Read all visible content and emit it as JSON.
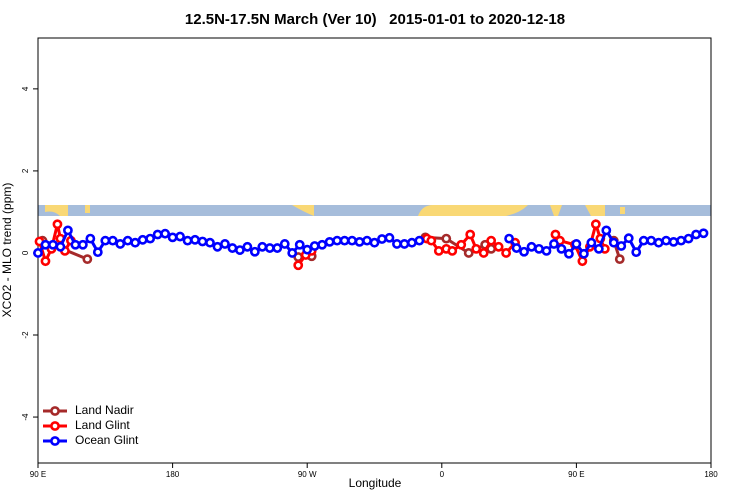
{
  "chart_data": {
    "type": "line",
    "title": "12.5N-17.5N March (Ver 10)   2015-01-01 to 2020-12-18",
    "x_label": "Longitude",
    "y_label": "XCO2 - MLO trend (ppm)",
    "xlim": [
      90,
      540
    ],
    "ylim": [
      -5.12,
      5.24
    ],
    "xticks": [
      {
        "value": 90,
        "label": "90 E"
      },
      180,
      {
        "value": 270,
        "label": "90 W"
      },
      {
        "value": 360,
        "label": "0"
      },
      {
        "value": 450,
        "label": "90 E"
      },
      {
        "value": 540,
        "label": "180"
      }
    ],
    "yticks": [
      -4,
      -2,
      0,
      2,
      4
    ],
    "legend": "bottomleft",
    "series": [
      {
        "name": "Land Nadir",
        "color": "#a52a2a",
        "x": [
          93,
          123,
          200,
          264,
          273,
          320,
          349,
          363,
          378,
          389,
          393,
          420,
          475,
          479
        ],
        "values": [
          0.3,
          -0.15,
          null,
          -0.1,
          -0.08,
          null,
          0.38,
          0.35,
          0,
          0.2,
          0.1,
          null,
          0.3,
          -0.15
        ]
      },
      {
        "name": "Land Glint",
        "color": "#ff0000",
        "x": [
          91,
          95,
          99,
          103,
          105,
          108,
          112,
          180,
          264,
          269,
          273,
          320,
          350,
          353,
          358,
          363,
          367,
          373,
          379,
          383,
          388,
          393,
          398,
          403,
          409,
          420,
          436,
          439,
          449,
          454,
          459,
          463,
          466,
          469
        ],
        "values": [
          0.28,
          -0.2,
          0.1,
          0.7,
          0.35,
          0.05,
          0.3,
          null,
          -0.3,
          -0.05,
          0.05,
          null,
          0.35,
          0.3,
          0.05,
          0.1,
          0.05,
          0.2,
          0.45,
          0.1,
          0,
          0.3,
          0.15,
          0,
          0.25,
          null,
          0.45,
          0.3,
          0.2,
          -0.2,
          0.15,
          0.7,
          0.35,
          0.1
        ]
      },
      {
        "name": "Ocean Glint",
        "color": "#0000ff",
        "x": [
          90,
          95,
          100,
          105,
          110,
          115,
          120,
          125,
          130,
          135,
          140,
          145,
          150,
          155,
          160,
          165,
          170,
          175,
          180,
          185,
          190,
          195,
          200,
          205,
          210,
          215,
          220,
          225,
          230,
          235,
          240,
          245,
          250,
          255,
          260,
          265,
          270,
          275,
          280,
          285,
          290,
          295,
          300,
          305,
          310,
          315,
          320,
          325,
          330,
          335,
          340,
          345,
          375,
          405,
          410,
          415,
          420,
          425,
          430,
          435,
          440,
          445,
          450,
          455,
          460,
          465,
          470,
          475,
          480,
          485,
          490,
          495,
          500,
          505,
          510,
          515,
          520,
          525,
          530,
          535
        ],
        "values": [
          0,
          0.2,
          0.2,
          0.15,
          0.55,
          0.2,
          0.2,
          0.35,
          0.02,
          0.3,
          0.3,
          0.22,
          0.3,
          0.25,
          0.32,
          0.35,
          0.45,
          0.47,
          0.38,
          0.4,
          0.3,
          0.32,
          0.28,
          0.25,
          0.15,
          0.22,
          0.12,
          0.07,
          0.15,
          0.03,
          0.15,
          0.12,
          0.12,
          0.22,
          0,
          0.2,
          0.08,
          0.17,
          0.2,
          0.27,
          0.3,
          0.3,
          0.3,
          0.27,
          0.3,
          0.25,
          0.34,
          0.37,
          0.22,
          0.22,
          0.25,
          0.3,
          null,
          0.35,
          0.12,
          0.03,
          0.15,
          0.1,
          0.05,
          0.22,
          0.1,
          -0.02,
          0.22,
          -0.02,
          0.25,
          0.1,
          0.55,
          0.25,
          0.17,
          0.36,
          0.02,
          0.3,
          0.3,
          0.25,
          0.3,
          0.27,
          0.3,
          0.35,
          0.45,
          0.48
        ]
      }
    ]
  }
}
